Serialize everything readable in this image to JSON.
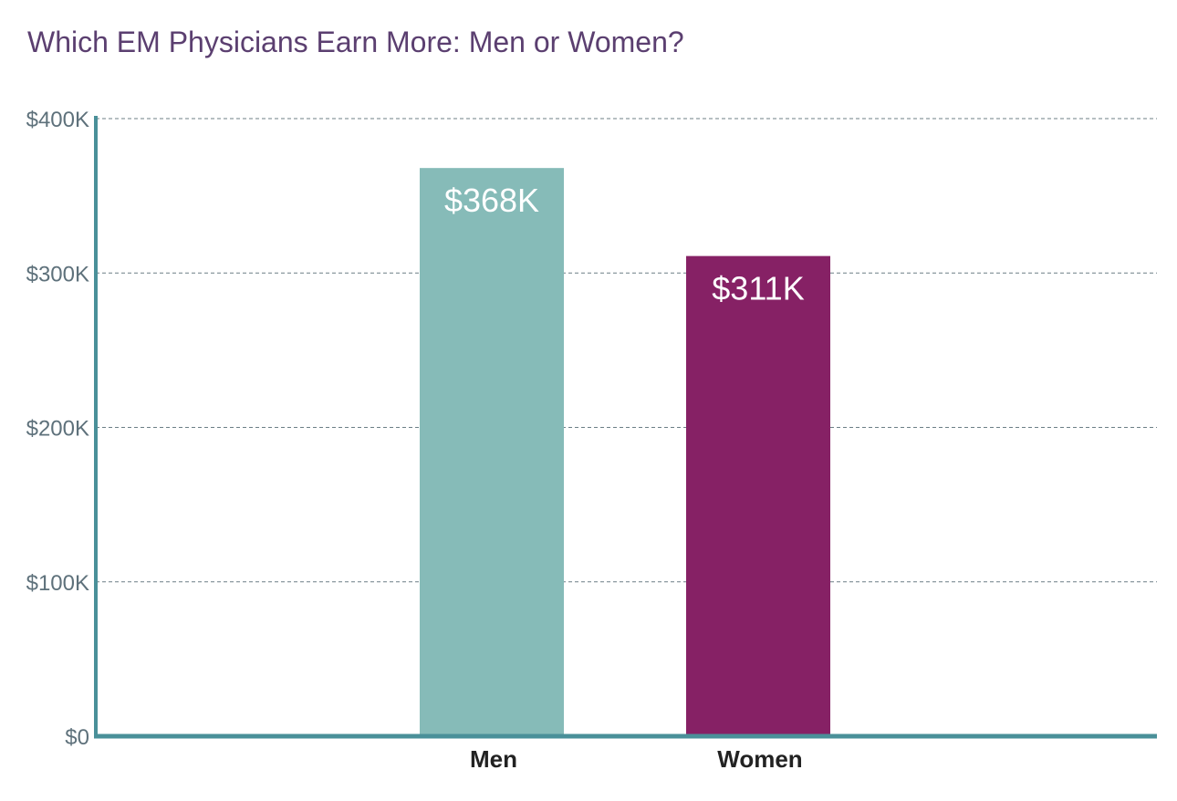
{
  "chart_data": {
    "type": "bar",
    "title": "Which EM Physicians Earn More: Men or Women?",
    "xlabel": "",
    "ylabel": "",
    "categories": [
      "Men",
      "Women"
    ],
    "values": [
      368,
      311
    ],
    "data_labels": [
      "$368K",
      "$311K"
    ],
    "colors": [
      "#86bbb8",
      "#862165"
    ],
    "ylim": [
      0,
      400
    ],
    "yticks": [
      0,
      100,
      200,
      300,
      400
    ],
    "ytick_labels": [
      "$0",
      "$100K",
      "$200K",
      "$300K",
      "$400K"
    ],
    "grid": true,
    "grid_style": "dashed",
    "axis_color": "#4a9099",
    "legend": "none"
  }
}
